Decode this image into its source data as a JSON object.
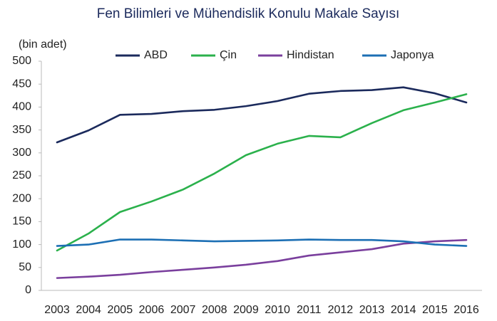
{
  "chart_data": {
    "type": "line",
    "title": "Fen Bilimleri ve Mühendislik Konulu Makale Sayısı",
    "y_label": "(bin adet)",
    "categories": [
      "2003",
      "2004",
      "2005",
      "2006",
      "2007",
      "2008",
      "2009",
      "2010",
      "2011",
      "2012",
      "2013",
      "2014",
      "2015",
      "2016"
    ],
    "series": [
      {
        "name": "ABD",
        "color": "#1b2a5c",
        "values": [
          323,
          349,
          383,
          385,
          391,
          394,
          402,
          413,
          429,
          435,
          437,
          443,
          430,
          410
        ]
      },
      {
        "name": "Çin",
        "color": "#2bb14c",
        "values": [
          87,
          124,
          171,
          194,
          220,
          255,
          295,
          320,
          337,
          334,
          365,
          393,
          410,
          428
        ]
      },
      {
        "name": "Hindistan",
        "color": "#7a3f9d",
        "values": [
          27,
          30,
          34,
          40,
          45,
          50,
          56,
          64,
          76,
          83,
          90,
          102,
          107,
          110
        ]
      },
      {
        "name": "Japonya",
        "color": "#1c6fb4",
        "values": [
          97,
          100,
          111,
          111,
          109,
          107,
          108,
          109,
          111,
          110,
          110,
          107,
          100,
          97
        ]
      }
    ],
    "ylim": [
      0,
      500
    ],
    "yticks": [
      0,
      50,
      100,
      150,
      200,
      250,
      300,
      350,
      400,
      450,
      500
    ],
    "grid": false,
    "legend": "top"
  }
}
